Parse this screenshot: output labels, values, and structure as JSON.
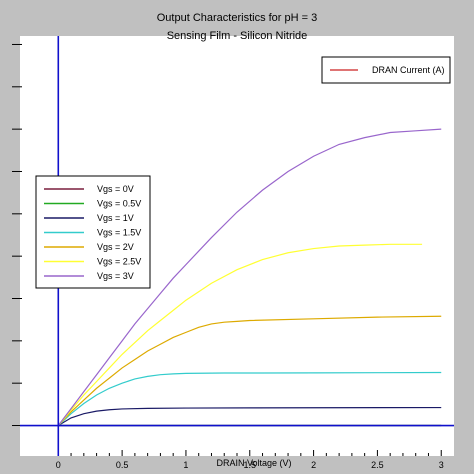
{
  "chart_data": {
    "type": "line",
    "title": "Output Characteristics for pH = 3",
    "subtitle": "Sensing Film - Silicon Nitride",
    "xlabel": "DRAIN Voltage (V)",
    "ylabel": "",
    "xlim": [
      -0.3,
      3.1
    ],
    "ylim": [
      -0.18,
      2.3
    ],
    "x_ticks": [
      "0",
      "0.5",
      "1",
      "1.5",
      "2",
      "2.5",
      "3"
    ],
    "x_tick_values": [
      0,
      0.5,
      1,
      1.5,
      2,
      2.5,
      3
    ],
    "y_tick_labels_visible": false,
    "legend_top_right": "DRAN Current (A)",
    "legend_top_right_color": "#cc2222",
    "series": [
      {
        "name": "Vgs = 0V",
        "color": "#7a1f3d",
        "x": [
          0,
          3
        ],
        "y": [
          0,
          0
        ]
      },
      {
        "name": "Vgs = 0.5V",
        "color": "#22aa22",
        "x": [
          0,
          3
        ],
        "y": [
          0,
          0
        ]
      },
      {
        "name": "Vgs = 1V",
        "color": "#1a1a66",
        "x": [
          0,
          0.1,
          0.2,
          0.3,
          0.4,
          0.5,
          0.7,
          1.0,
          1.5,
          2.0,
          3.0
        ],
        "y": [
          0,
          0.045,
          0.07,
          0.085,
          0.093,
          0.098,
          0.101,
          0.103,
          0.104,
          0.105,
          0.106
        ]
      },
      {
        "name": "Vgs = 1.5V",
        "color": "#33cccc",
        "x": [
          0,
          0.1,
          0.2,
          0.3,
          0.4,
          0.5,
          0.6,
          0.7,
          0.8,
          0.9,
          1.0,
          1.3,
          1.6,
          2.0,
          2.5,
          3.0
        ],
        "y": [
          0,
          0.07,
          0.13,
          0.18,
          0.22,
          0.25,
          0.275,
          0.29,
          0.3,
          0.305,
          0.308,
          0.31,
          0.31,
          0.311,
          0.312,
          0.313
        ]
      },
      {
        "name": "Vgs = 2V",
        "color": "#ddaa00",
        "x": [
          0,
          0.1,
          0.2,
          0.3,
          0.4,
          0.5,
          0.6,
          0.7,
          0.8,
          0.9,
          1.0,
          1.1,
          1.2,
          1.3,
          1.4,
          1.5,
          2.0,
          2.5,
          3.0
        ],
        "y": [
          0,
          0.08,
          0.15,
          0.22,
          0.28,
          0.34,
          0.39,
          0.44,
          0.48,
          0.52,
          0.55,
          0.58,
          0.6,
          0.61,
          0.615,
          0.62,
          0.63,
          0.64,
          0.645
        ]
      },
      {
        "name": "Vgs = 2.5V",
        "color": "#ffff33",
        "x": [
          0,
          0.1,
          0.2,
          0.3,
          0.4,
          0.5,
          0.6,
          0.7,
          0.8,
          0.9,
          1.0,
          1.2,
          1.4,
          1.6,
          1.8,
          2.0,
          2.2,
          2.4,
          2.6,
          2.85
        ],
        "y": [
          0,
          0.09,
          0.18,
          0.26,
          0.34,
          0.42,
          0.49,
          0.56,
          0.62,
          0.68,
          0.74,
          0.84,
          0.92,
          0.98,
          1.02,
          1.045,
          1.06,
          1.065,
          1.07,
          1.07
        ]
      },
      {
        "name": "Vgs = 3V",
        "color": "#9966cc",
        "x": [
          0,
          0.1,
          0.2,
          0.3,
          0.4,
          0.5,
          0.6,
          0.7,
          0.8,
          0.9,
          1.0,
          1.2,
          1.4,
          1.6,
          1.8,
          2.0,
          2.2,
          2.4,
          2.6,
          2.8,
          3.0
        ],
        "y": [
          0,
          0.1,
          0.2,
          0.3,
          0.4,
          0.5,
          0.6,
          0.69,
          0.78,
          0.87,
          0.95,
          1.11,
          1.26,
          1.39,
          1.5,
          1.59,
          1.66,
          1.7,
          1.73,
          1.74,
          1.75
        ]
      }
    ]
  }
}
